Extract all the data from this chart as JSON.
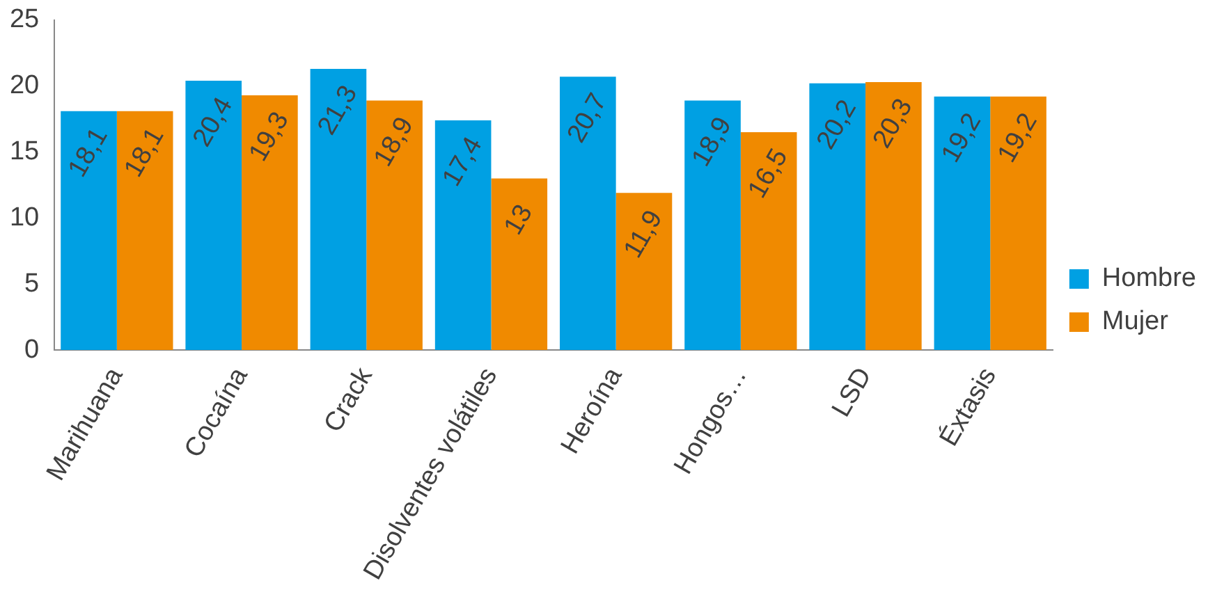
{
  "chart_data": {
    "type": "bar",
    "categories": [
      "Marihuana",
      "Cocaína",
      "Crack",
      "Disolventes volátiles",
      "Heroína",
      "Hongos…",
      "LSD",
      "Éxtasis"
    ],
    "series": [
      {
        "name": "Hombre",
        "color": "#00a0e3",
        "values": [
          18.1,
          20.4,
          21.3,
          17.4,
          20.7,
          18.9,
          20.2,
          19.2
        ],
        "value_labels": [
          "18,1",
          "20,4",
          "21,3",
          "17,4",
          "20,7",
          "18,9",
          "20,2",
          "19,2"
        ]
      },
      {
        "name": "Mujer",
        "color": "#f08a00",
        "values": [
          18.1,
          19.3,
          18.9,
          13,
          11.9,
          16.5,
          20.3,
          19.2
        ],
        "value_labels": [
          "18,1",
          "19,3",
          "18,9",
          "13",
          "11,9",
          "16,5",
          "20,3",
          "19,2"
        ]
      }
    ],
    "ylim": [
      0,
      25
    ],
    "yticks": [
      0,
      5,
      10,
      15,
      20,
      25
    ],
    "grid": false,
    "legend": "right"
  }
}
